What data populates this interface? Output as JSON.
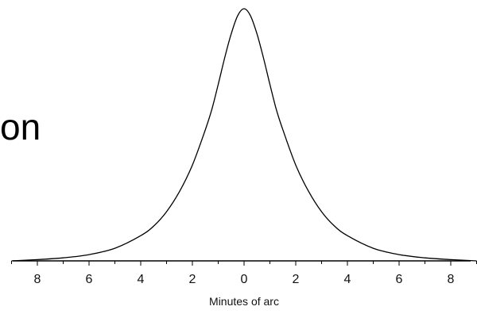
{
  "slide_text_fragment": "on",
  "chart_data": {
    "type": "line",
    "title": "",
    "xlabel": "Minutes of arc",
    "ylabel": "",
    "x_tick_labels": [
      {
        "value": -8,
        "label": "8"
      },
      {
        "value": -6,
        "label": "6"
      },
      {
        "value": -4,
        "label": "4"
      },
      {
        "value": -2,
        "label": "2"
      },
      {
        "value": 0,
        "label": "0"
      },
      {
        "value": 2,
        "label": "2"
      },
      {
        "value": 4,
        "label": "4"
      },
      {
        "value": 6,
        "label": "6"
      },
      {
        "value": 8,
        "label": "8"
      }
    ],
    "xlim": [
      -9,
      9
    ],
    "ylim": [
      0,
      1
    ],
    "grid": false,
    "series": [
      {
        "color": "#000000",
        "x": [
          -9,
          -8,
          -7,
          -6,
          -5,
          -4,
          -3.5,
          -3,
          -2.5,
          -2,
          -1.5,
          -1.25,
          -1,
          -0.75,
          -0.5,
          -0.25,
          0,
          0.25,
          0.5,
          0.75,
          1,
          1.25,
          1.5,
          2,
          2.5,
          3,
          3.5,
          4,
          5,
          6,
          7,
          8,
          9
        ],
        "y": [
          0.0,
          0.005,
          0.012,
          0.025,
          0.05,
          0.1,
          0.138,
          0.195,
          0.275,
          0.38,
          0.52,
          0.6,
          0.7,
          0.805,
          0.9,
          0.972,
          1.0,
          0.972,
          0.9,
          0.805,
          0.7,
          0.6,
          0.52,
          0.38,
          0.275,
          0.195,
          0.138,
          0.1,
          0.05,
          0.025,
          0.012,
          0.005,
          0.0
        ]
      }
    ]
  }
}
